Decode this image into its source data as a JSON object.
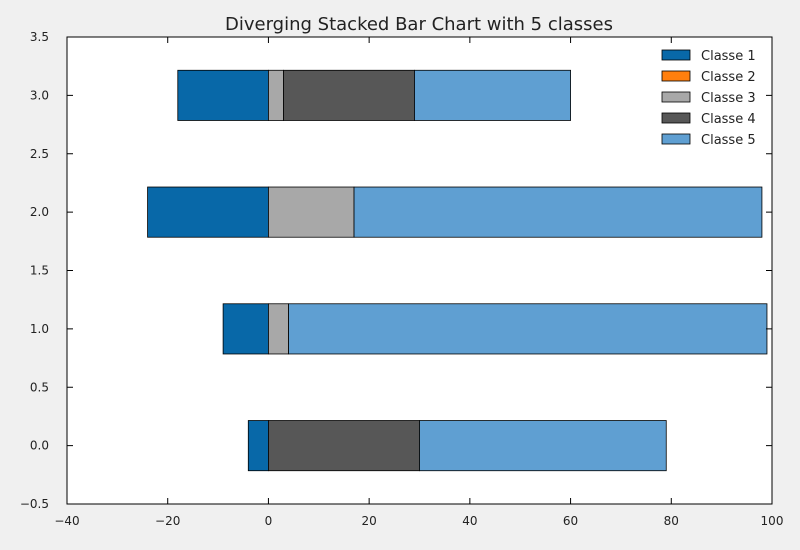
{
  "chart_data": {
    "type": "bar",
    "orientation": "horizontal",
    "stacked": true,
    "diverging": true,
    "title": "Diverging Stacked Bar Chart with 5 classes",
    "xlabel": "",
    "ylabel": "",
    "xlim": [
      -40,
      100
    ],
    "ylim": [
      -0.5,
      3.5
    ],
    "x_ticks": [
      -40,
      -20,
      0,
      20,
      40,
      60,
      80,
      100
    ],
    "x_tick_labels": [
      "−40",
      "−20",
      "0",
      "20",
      "40",
      "60",
      "80",
      "100"
    ],
    "y_ticks": [
      -0.5,
      0.0,
      0.5,
      1.0,
      1.5,
      2.0,
      2.5,
      3.0,
      3.5
    ],
    "y_tick_labels": [
      "−0.5",
      "0.0",
      "0.5",
      "1.0",
      "1.5",
      "2.0",
      "2.5",
      "3.0",
      "3.5"
    ],
    "grid": false,
    "legend_position": "top-right",
    "bar_positions": [
      0,
      1,
      2,
      3
    ],
    "series": [
      {
        "name": "Classe 1",
        "color": "#0868a8",
        "values": [
          -4,
          -9,
          -24,
          -18
        ]
      },
      {
        "name": "Classe 2",
        "color": "#ff7f0e",
        "values": [
          0,
          0,
          0,
          0
        ]
      },
      {
        "name": "Classe 3",
        "color": "#a8a8a8",
        "values": [
          0,
          4,
          17,
          3
        ]
      },
      {
        "name": "Classe 4",
        "color": "#575757",
        "values": [
          30,
          0,
          0,
          26
        ]
      },
      {
        "name": "Classe 5",
        "color": "#5f9fd2",
        "values": [
          49,
          95,
          81,
          31
        ]
      }
    ]
  }
}
